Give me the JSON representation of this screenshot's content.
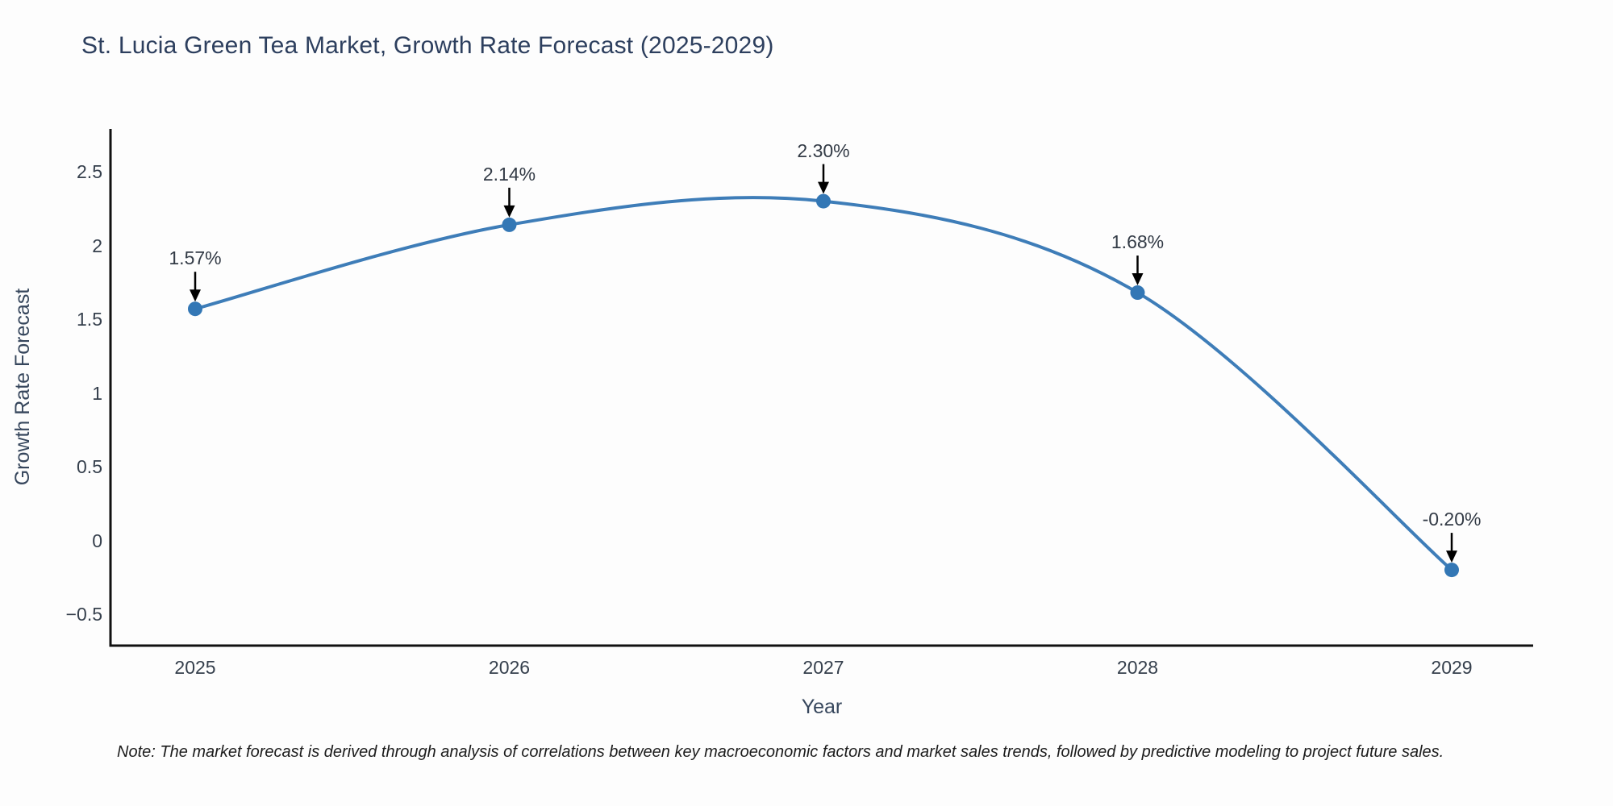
{
  "page": {
    "background": "#fdfdfd"
  },
  "chart_data": {
    "type": "line",
    "title": "St. Lucia Green Tea Market, Growth Rate Forecast (2025-2029)",
    "xlabel": "Year",
    "ylabel": "Growth Rate Forecast",
    "x": [
      2025,
      2026,
      2027,
      2028,
      2029
    ],
    "x_tick_labels": [
      "2025",
      "2026",
      "2027",
      "2028",
      "2029"
    ],
    "series": [
      {
        "name": "Growth Rate Forecast",
        "values": [
          1.57,
          2.14,
          2.3,
          1.68,
          -0.2
        ]
      }
    ],
    "point_labels": [
      "1.57%",
      "2.14%",
      "2.30%",
      "1.68%",
      "-0.20%"
    ],
    "y_ticks": {
      "values": [
        2.5,
        2,
        1.5,
        1,
        0.5,
        0,
        -0.5
      ],
      "labels": [
        "2.5",
        "2",
        "1.5",
        "1",
        "0.5",
        "0",
        "−0.5"
      ]
    },
    "ylim": [
      -0.71,
      2.79
    ],
    "line_shape": "spline",
    "grid": false,
    "legend": false,
    "annotations_style": "black arrows pointing down to each data point",
    "colors": {
      "line": "#3e7db8",
      "marker": "#3377b5",
      "axis": "#111111",
      "title_text": "#2d3f5e",
      "tick_text": "#353f4c",
      "annotation_text": "#333b46",
      "arrow": "#000000",
      "note_text": "#1c1c1c"
    },
    "footnote": "Note: The market forecast is derived through analysis of correlations between key macroeconomic factors and market sales trends, followed by predictive modeling to project future sales."
  }
}
